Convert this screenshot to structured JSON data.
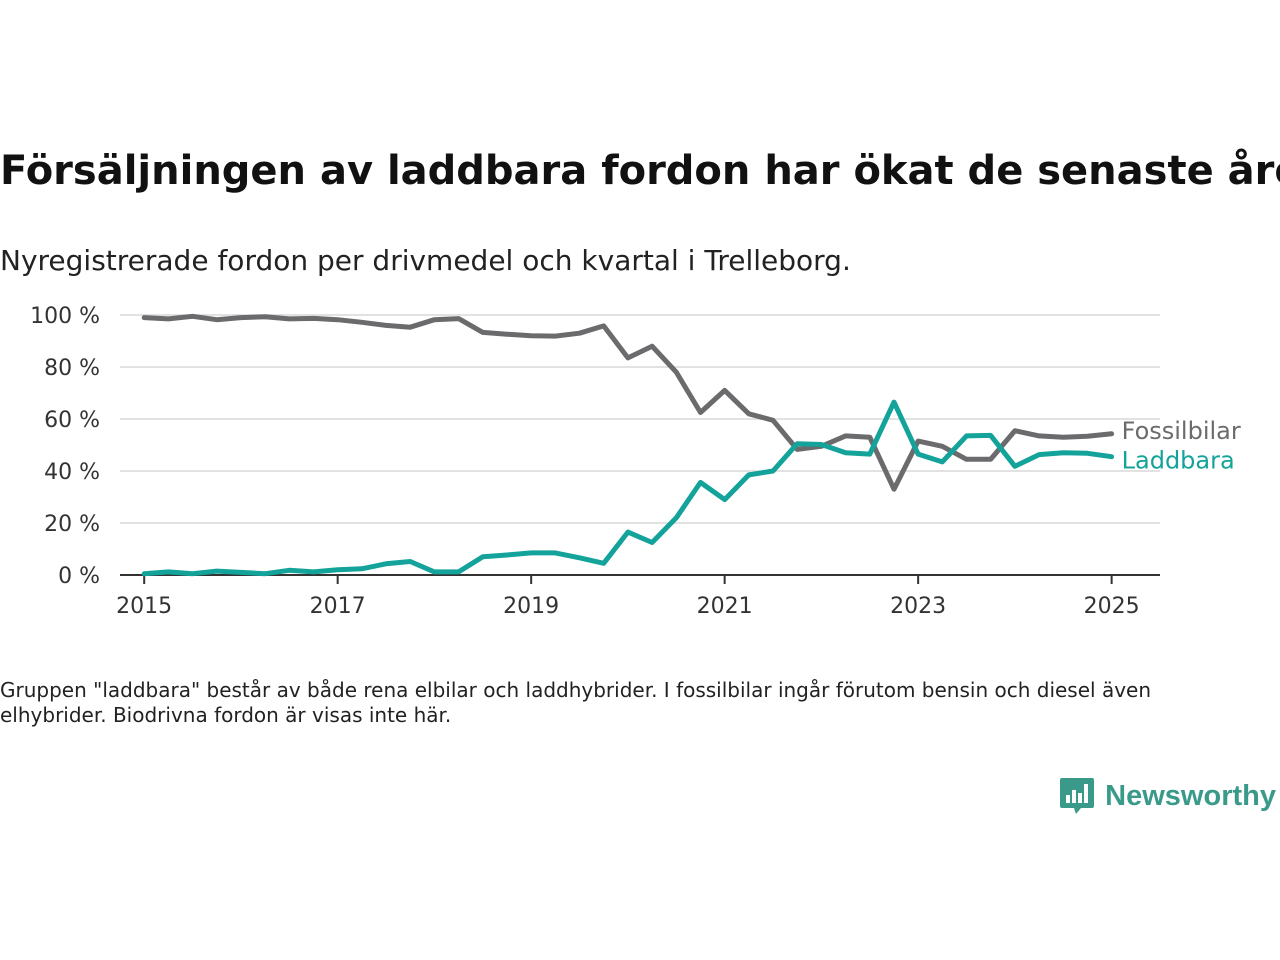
{
  "title": "Försäljningen av laddbara fordon har ökat de senaste åren",
  "subtitle": "Nyregistrerade fordon per drivmedel och kvartal i Trelleborg.",
  "footnote": "Gruppen \"laddbara\" består av både rena elbilar och laddhybrider. I fossilbilar ingår förutom bensin och diesel även elhybrider. Biodrivna fordon är visas inte här.",
  "brand": {
    "name": "Newsworthy",
    "icon": "newsworthy-chart-icon",
    "color": "#3a9a8a"
  },
  "chart_data": {
    "type": "line",
    "xlabel": "",
    "ylabel": "",
    "xlim": [
      2014.75,
      2025.5
    ],
    "ylim": [
      0,
      100
    ],
    "grid": true,
    "legend": "end-of-line labels, right",
    "x_ticks": [
      2015,
      2017,
      2019,
      2021,
      2023,
      2025
    ],
    "x_tick_labels": [
      "2015",
      "2017",
      "2019",
      "2021",
      "2023",
      "2025"
    ],
    "y_ticks": [
      0,
      20,
      40,
      60,
      80,
      100
    ],
    "y_tick_labels": [
      "0 %",
      "20 %",
      "40 %",
      "60 %",
      "80 %",
      "100 %"
    ],
    "x": [
      2015.0,
      2015.25,
      2015.5,
      2015.75,
      2016.0,
      2016.25,
      2016.5,
      2016.75,
      2017.0,
      2017.25,
      2017.5,
      2017.75,
      2018.0,
      2018.25,
      2018.5,
      2018.75,
      2019.0,
      2019.25,
      2019.5,
      2019.75,
      2020.0,
      2020.25,
      2020.5,
      2020.75,
      2021.0,
      2021.25,
      2021.5,
      2021.75,
      2022.0,
      2022.25,
      2022.5,
      2022.75,
      2023.0,
      2023.25,
      2023.5,
      2023.75,
      2024.0,
      2024.25,
      2024.5,
      2024.75,
      2025.0
    ],
    "series": [
      {
        "name": "Fossilbilar",
        "color": "#6b6b6d",
        "values": [
          99,
          98.5,
          99.5,
          98.2,
          99,
          99.3,
          98.5,
          98.7,
          98.2,
          97.2,
          96,
          95.3,
          98.2,
          98.6,
          93.3,
          92.6,
          92,
          91.9,
          93,
          95.8,
          83.5,
          88,
          78,
          62.5,
          71,
          62,
          59.5,
          48.3,
          49.5,
          53.5,
          53,
          33,
          51.5,
          49.5,
          44.5,
          44.5,
          55.5,
          53.5,
          53,
          53.4,
          54.3
        ]
      },
      {
        "name": "Laddbara",
        "color": "#14a39a",
        "values": [
          0.5,
          1.2,
          0.5,
          1.5,
          1,
          0.5,
          1.8,
          1.2,
          2,
          2.4,
          4.3,
          5.2,
          1.2,
          1.2,
          7,
          7.7,
          8.5,
          8.5,
          6.6,
          4.5,
          16.5,
          12.5,
          22,
          35.6,
          29,
          38.5,
          40,
          50.5,
          50.2,
          47,
          46.5,
          66.5,
          46.5,
          43.5,
          53.5,
          53.7,
          41.8,
          46.3,
          47,
          46.8,
          45.5
        ]
      }
    ]
  }
}
